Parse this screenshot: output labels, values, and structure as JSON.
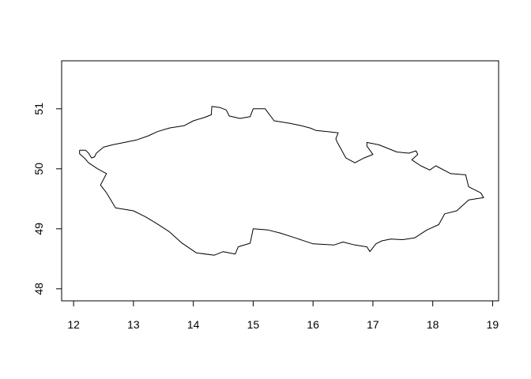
{
  "chart_data": {
    "type": "map",
    "xlim": [
      11.8,
      19.1
    ],
    "ylim": [
      47.8,
      51.8
    ],
    "x_ticks": [
      12,
      13,
      14,
      15,
      16,
      17,
      18,
      19
    ],
    "y_ticks": [
      48,
      49,
      50,
      51
    ],
    "x_tick_labels": [
      "12",
      "13",
      "14",
      "15",
      "16",
      "17",
      "18",
      "19"
    ],
    "y_tick_labels": [
      "48",
      "49",
      "50",
      "51"
    ],
    "line_color": "#000000",
    "boundary": [
      [
        12.1,
        50.31
      ],
      [
        12.2,
        50.31
      ],
      [
        12.25,
        50.26
      ],
      [
        12.3,
        50.18
      ],
      [
        12.35,
        50.2
      ],
      [
        12.38,
        50.26
      ],
      [
        12.5,
        50.36
      ],
      [
        12.65,
        50.4
      ],
      [
        12.85,
        50.44
      ],
      [
        13.05,
        50.48
      ],
      [
        13.25,
        50.55
      ],
      [
        13.4,
        50.62
      ],
      [
        13.6,
        50.68
      ],
      [
        13.85,
        50.72
      ],
      [
        14.0,
        50.8
      ],
      [
        14.2,
        50.86
      ],
      [
        14.3,
        50.9
      ],
      [
        14.31,
        51.04
      ],
      [
        14.45,
        51.02
      ],
      [
        14.55,
        50.98
      ],
      [
        14.6,
        50.88
      ],
      [
        14.78,
        50.84
      ],
      [
        14.95,
        50.87
      ],
      [
        15.0,
        51.0
      ],
      [
        15.2,
        51.0
      ],
      [
        15.35,
        50.8
      ],
      [
        15.6,
        50.76
      ],
      [
        15.8,
        50.72
      ],
      [
        15.95,
        50.68
      ],
      [
        16.05,
        50.64
      ],
      [
        16.25,
        50.62
      ],
      [
        16.42,
        50.6
      ],
      [
        16.38,
        50.5
      ],
      [
        16.4,
        50.45
      ],
      [
        16.55,
        50.18
      ],
      [
        16.7,
        50.1
      ],
      [
        16.85,
        50.18
      ],
      [
        17.0,
        50.24
      ],
      [
        16.9,
        50.38
      ],
      [
        16.9,
        50.44
      ],
      [
        17.1,
        50.4
      ],
      [
        17.4,
        50.28
      ],
      [
        17.6,
        50.26
      ],
      [
        17.72,
        50.3
      ],
      [
        17.75,
        50.24
      ],
      [
        17.65,
        50.15
      ],
      [
        17.8,
        50.05
      ],
      [
        17.95,
        49.98
      ],
      [
        18.05,
        50.05
      ],
      [
        18.3,
        49.92
      ],
      [
        18.55,
        49.9
      ],
      [
        18.6,
        49.7
      ],
      [
        18.8,
        49.6
      ],
      [
        18.85,
        49.52
      ],
      [
        18.6,
        49.48
      ],
      [
        18.4,
        49.3
      ],
      [
        18.2,
        49.25
      ],
      [
        18.1,
        49.07
      ],
      [
        17.9,
        48.98
      ],
      [
        17.7,
        48.85
      ],
      [
        17.5,
        48.82
      ],
      [
        17.3,
        48.83
      ],
      [
        17.15,
        48.8
      ],
      [
        17.05,
        48.75
      ],
      [
        16.95,
        48.62
      ],
      [
        16.9,
        48.7
      ],
      [
        16.7,
        48.73
      ],
      [
        16.5,
        48.78
      ],
      [
        16.35,
        48.73
      ],
      [
        16.0,
        48.75
      ],
      [
        15.7,
        48.85
      ],
      [
        15.45,
        48.93
      ],
      [
        15.25,
        48.98
      ],
      [
        15.0,
        49.0
      ],
      [
        14.95,
        48.76
      ],
      [
        14.75,
        48.7
      ],
      [
        14.7,
        48.58
      ],
      [
        14.5,
        48.62
      ],
      [
        14.35,
        48.56
      ],
      [
        14.05,
        48.6
      ],
      [
        13.8,
        48.77
      ],
      [
        13.6,
        48.95
      ],
      [
        13.4,
        49.08
      ],
      [
        13.2,
        49.2
      ],
      [
        13.0,
        49.3
      ],
      [
        12.7,
        49.35
      ],
      [
        12.55,
        49.6
      ],
      [
        12.45,
        49.73
      ],
      [
        12.55,
        49.92
      ],
      [
        12.4,
        50.0
      ],
      [
        12.25,
        50.1
      ],
      [
        12.18,
        50.18
      ],
      [
        12.1,
        50.25
      ],
      [
        12.1,
        50.31
      ]
    ]
  }
}
